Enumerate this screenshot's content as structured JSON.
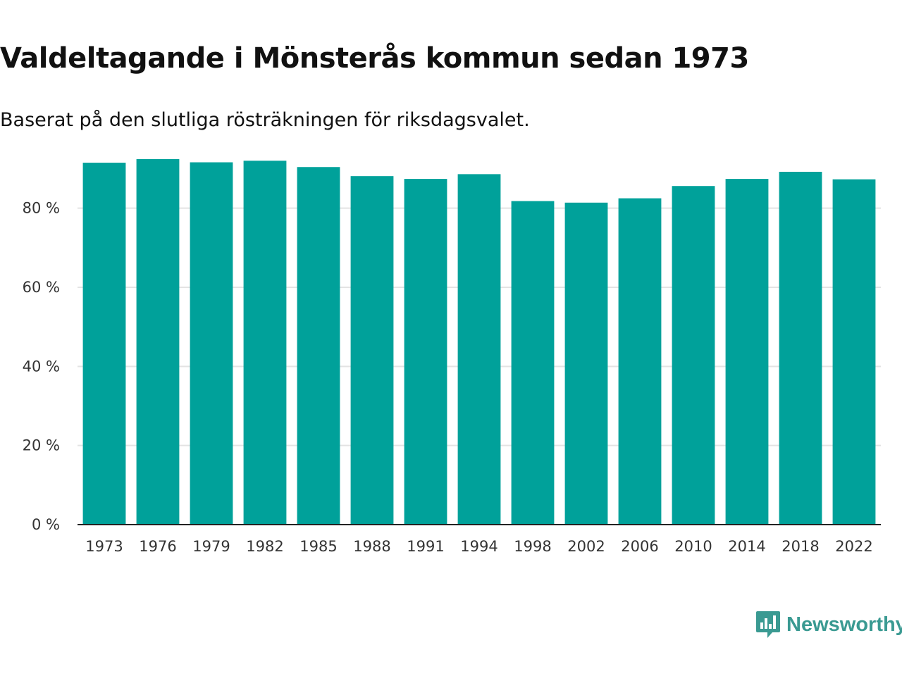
{
  "header": {
    "title": "Valdeltagande i Mönsterås kommun sedan 1973",
    "subtitle": "Baserat på den slutliga rösträkningen för riksdagsvalet."
  },
  "chart_data": {
    "type": "bar",
    "title": "Valdeltagande i Mönsterås kommun sedan 1973",
    "subtitle": "Baserat på den slutliga rösträkningen för riksdagsvalet.",
    "xlabel": "",
    "ylabel": "",
    "categories": [
      "1973",
      "1976",
      "1979",
      "1982",
      "1985",
      "1988",
      "1991",
      "1994",
      "1998",
      "2002",
      "2006",
      "2010",
      "2014",
      "2018",
      "2022"
    ],
    "values": [
      91.5,
      92.4,
      91.6,
      92.0,
      90.4,
      88.1,
      87.4,
      88.6,
      81.8,
      81.4,
      82.5,
      85.6,
      87.4,
      89.2,
      87.3
    ],
    "ylim": [
      0,
      92.4
    ],
    "yticks": [
      0,
      20,
      40,
      60,
      80
    ],
    "ytick_labels": [
      "0 %",
      "20 %",
      "40 %",
      "60 %",
      "80 %"
    ],
    "grid": true,
    "legend": "none",
    "bar_color": "#00a19a"
  },
  "brand": {
    "name": "Newsworthy",
    "icon": "newsworthy-logo-icon",
    "color": "#3a9a92"
  }
}
